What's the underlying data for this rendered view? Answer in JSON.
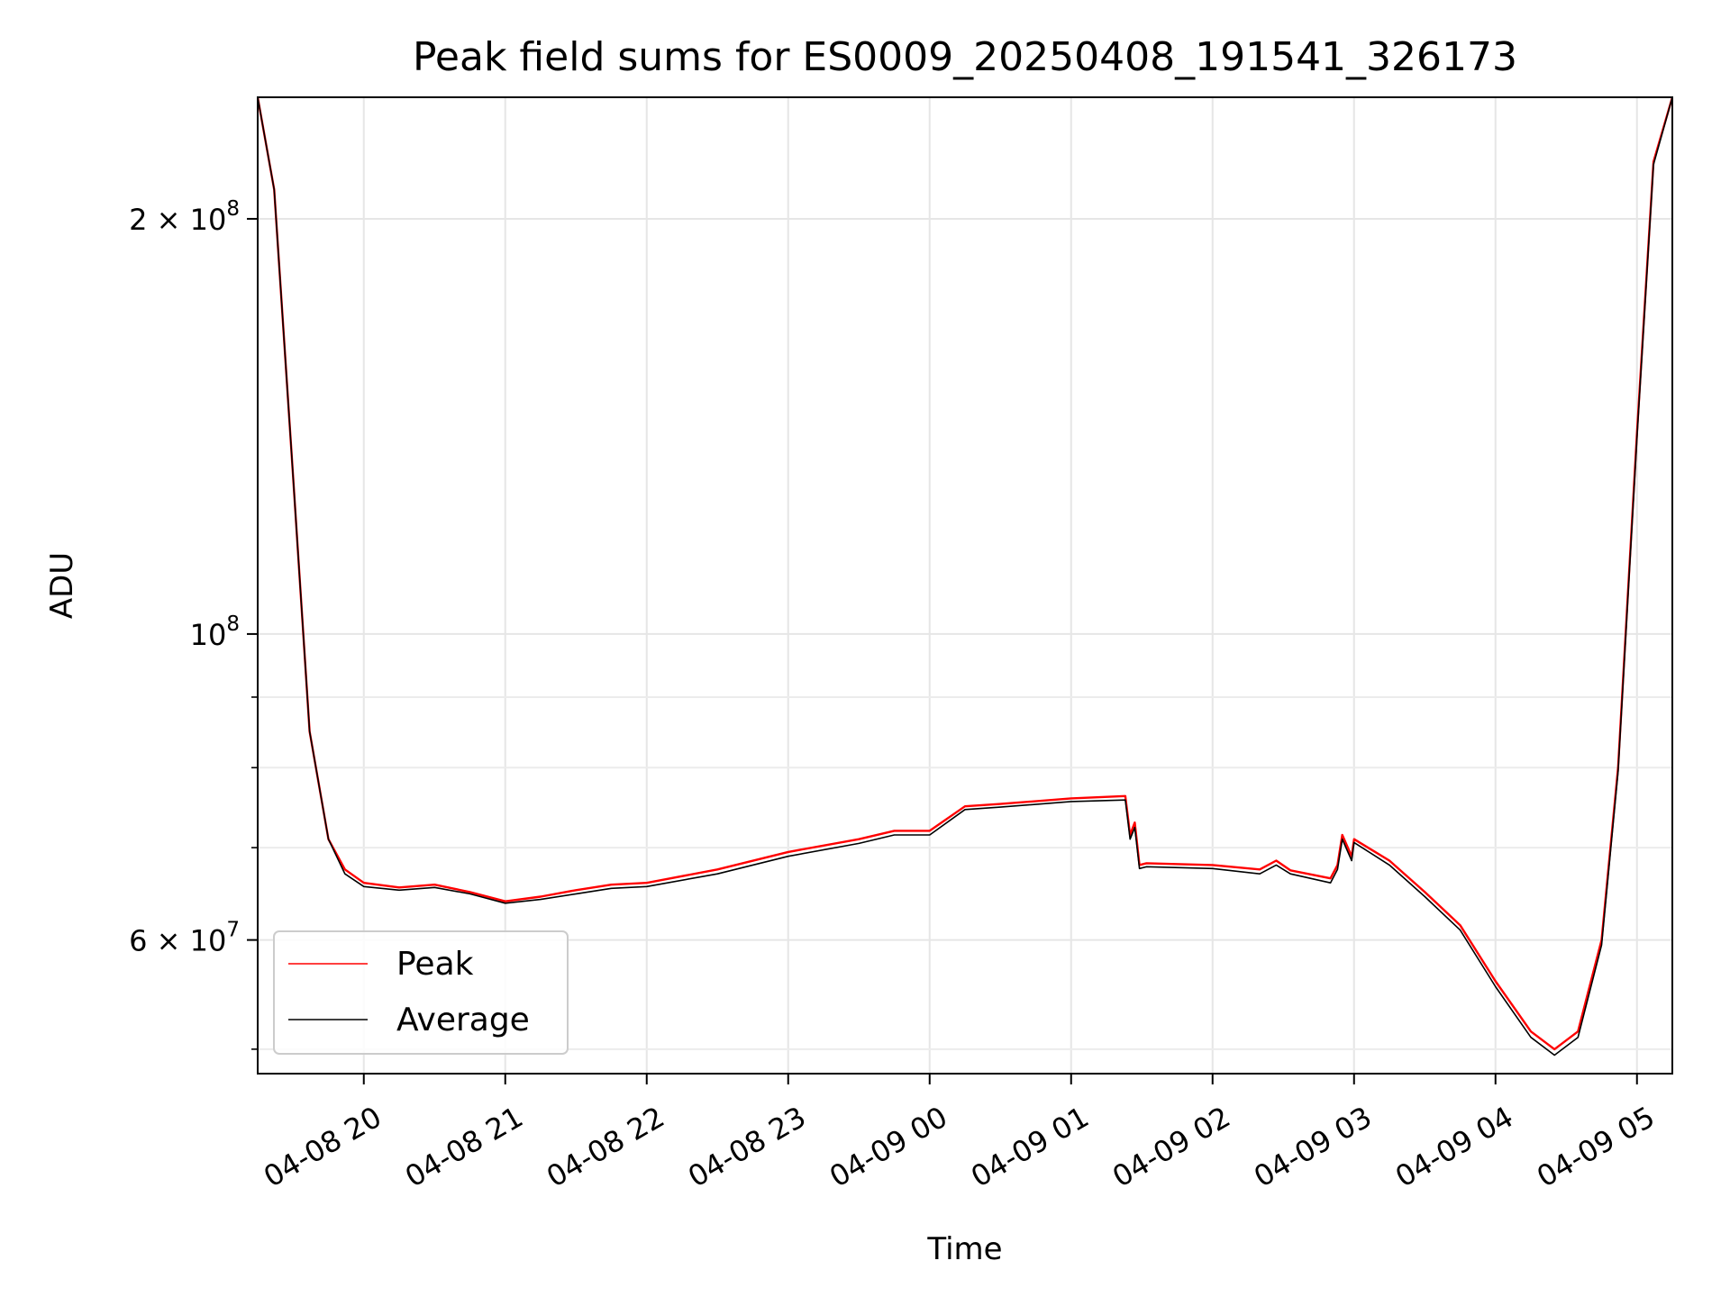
{
  "chart_data": {
    "type": "line",
    "title": "Peak field sums for ES0009_20250408_191541_326173",
    "xlabel": "Time",
    "ylabel": "ADU",
    "x_scale": "time",
    "y_scale": "log",
    "xlim": [
      "2025-04-08 19:15",
      "2025-04-09 05:15"
    ],
    "ylim": [
      48000000,
      245000000
    ],
    "grid": true,
    "legend_position": "lower-left",
    "x_ticks": [
      {
        "t": "2025-04-08 20:00",
        "label": "04-08 20"
      },
      {
        "t": "2025-04-08 21:00",
        "label": "04-08 21"
      },
      {
        "t": "2025-04-08 22:00",
        "label": "04-08 22"
      },
      {
        "t": "2025-04-08 23:00",
        "label": "04-08 23"
      },
      {
        "t": "2025-04-09 00:00",
        "label": "04-09 00"
      },
      {
        "t": "2025-04-09 01:00",
        "label": "04-09 01"
      },
      {
        "t": "2025-04-09 02:00",
        "label": "04-09 02"
      },
      {
        "t": "2025-04-09 03:00",
        "label": "04-09 03"
      },
      {
        "t": "2025-04-09 04:00",
        "label": "04-09 04"
      },
      {
        "t": "2025-04-09 05:00",
        "label": "04-09 05"
      }
    ],
    "y_ticks_major": [
      {
        "value": 60000000,
        "base": "6 × 10",
        "exp": "7"
      },
      {
        "value": 100000000,
        "base": "10",
        "exp": "8"
      },
      {
        "value": 200000000,
        "base": "2 × 10",
        "exp": "8"
      }
    ],
    "y_ticks_minor": [
      50000000,
      70000000,
      80000000,
      90000000
    ],
    "series": [
      {
        "name": "Peak",
        "color": "#ff0000",
        "x": [
          "2025-04-08 19:15",
          "2025-04-08 19:22",
          "2025-04-08 19:30",
          "2025-04-08 19:37",
          "2025-04-08 19:45",
          "2025-04-08 19:52",
          "2025-04-08 20:00",
          "2025-04-08 20:15",
          "2025-04-08 20:30",
          "2025-04-08 20:45",
          "2025-04-08 21:00",
          "2025-04-08 21:15",
          "2025-04-08 21:30",
          "2025-04-08 21:45",
          "2025-04-08 22:00",
          "2025-04-08 22:30",
          "2025-04-08 23:00",
          "2025-04-08 23:30",
          "2025-04-08 23:45",
          "2025-04-09 00:00",
          "2025-04-09 00:15",
          "2025-04-09 00:30",
          "2025-04-09 01:00",
          "2025-04-09 01:23",
          "2025-04-09 01:25",
          "2025-04-09 01:27",
          "2025-04-09 01:29",
          "2025-04-09 01:32",
          "2025-04-09 02:00",
          "2025-04-09 02:20",
          "2025-04-09 02:27",
          "2025-04-09 02:33",
          "2025-04-09 02:50",
          "2025-04-09 02:53",
          "2025-04-09 02:55",
          "2025-04-09 02:59",
          "2025-04-09 03:00",
          "2025-04-09 03:15",
          "2025-04-09 03:30",
          "2025-04-09 03:45",
          "2025-04-09 04:00",
          "2025-04-09 04:15",
          "2025-04-09 04:25",
          "2025-04-09 04:35",
          "2025-04-09 04:45",
          "2025-04-09 04:52",
          "2025-04-09 05:00",
          "2025-04-09 05:07",
          "2025-04-09 05:15"
        ],
        "values": [
          245000000,
          210000000,
          130000000,
          85000000,
          71000000,
          67500000,
          66000000,
          65500000,
          65800000,
          65000000,
          64000000,
          64500000,
          65200000,
          65800000,
          66000000,
          67500000,
          69500000,
          71000000,
          72000000,
          72000000,
          75000000,
          75300000,
          76000000,
          76300000,
          71500000,
          73000000,
          68000000,
          68200000,
          68000000,
          67500000,
          68500000,
          67400000,
          66500000,
          68000000,
          71500000,
          69000000,
          71000000,
          68500000,
          65000000,
          61500000,
          56000000,
          51500000,
          50000000,
          51500000,
          60000000,
          80000000,
          140000000,
          220000000,
          245000000
        ]
      },
      {
        "name": "Average",
        "color": "#000000",
        "x": [
          "2025-04-08 19:15",
          "2025-04-08 19:22",
          "2025-04-08 19:30",
          "2025-04-08 19:37",
          "2025-04-08 19:45",
          "2025-04-08 19:52",
          "2025-04-08 20:00",
          "2025-04-08 20:15",
          "2025-04-08 20:30",
          "2025-04-08 20:45",
          "2025-04-08 21:00",
          "2025-04-08 21:15",
          "2025-04-08 21:30",
          "2025-04-08 21:45",
          "2025-04-08 22:00",
          "2025-04-08 22:30",
          "2025-04-08 23:00",
          "2025-04-08 23:30",
          "2025-04-08 23:45",
          "2025-04-09 00:00",
          "2025-04-09 00:15",
          "2025-04-09 00:30",
          "2025-04-09 01:00",
          "2025-04-09 01:23",
          "2025-04-09 01:25",
          "2025-04-09 01:27",
          "2025-04-09 01:29",
          "2025-04-09 01:32",
          "2025-04-09 02:00",
          "2025-04-09 02:20",
          "2025-04-09 02:27",
          "2025-04-09 02:33",
          "2025-04-09 02:50",
          "2025-04-09 02:53",
          "2025-04-09 02:55",
          "2025-04-09 02:59",
          "2025-04-09 03:00",
          "2025-04-09 03:15",
          "2025-04-09 03:30",
          "2025-04-09 03:45",
          "2025-04-09 04:00",
          "2025-04-09 04:15",
          "2025-04-09 04:25",
          "2025-04-09 04:35",
          "2025-04-09 04:45",
          "2025-04-09 04:52",
          "2025-04-09 05:00",
          "2025-04-09 05:07",
          "2025-04-09 05:15"
        ],
        "values": [
          245000000,
          210000000,
          130000000,
          85000000,
          71000000,
          67000000,
          65600000,
          65200000,
          65500000,
          64800000,
          63800000,
          64200000,
          64800000,
          65400000,
          65600000,
          67000000,
          69000000,
          70500000,
          71500000,
          71500000,
          74600000,
          74900000,
          75600000,
          75800000,
          71000000,
          72400000,
          67600000,
          67800000,
          67600000,
          67000000,
          68000000,
          67000000,
          66000000,
          67500000,
          71000000,
          68500000,
          70600000,
          68000000,
          64500000,
          61000000,
          55500000,
          51000000,
          49500000,
          51000000,
          59500000,
          79500000,
          139000000,
          219000000,
          245000000
        ]
      }
    ]
  }
}
